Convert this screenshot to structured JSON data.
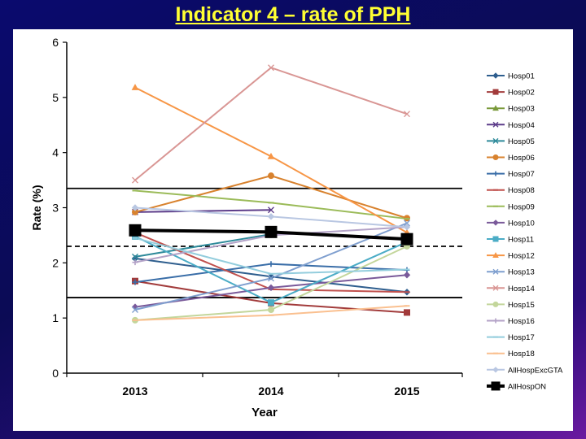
{
  "slide": {
    "title": "Indicator 4 – rate of PPH"
  },
  "chart_data": {
    "type": "line",
    "title": "",
    "xlabel": "Year",
    "ylabel": "Rate (%)",
    "categories": [
      "2013",
      "2014",
      "2015"
    ],
    "ylim": [
      0,
      6
    ],
    "yticks": [
      0,
      1,
      2,
      3,
      4,
      5,
      6
    ],
    "grid": false,
    "legend": "right",
    "reference_lines": [
      {
        "value": 3.35,
        "style": "solid"
      },
      {
        "value": 2.3,
        "style": "dashed"
      },
      {
        "value": 1.37,
        "style": "solid"
      }
    ],
    "series": [
      {
        "name": "Hosp01",
        "values": [
          2.08,
          1.75,
          1.47
        ],
        "color": "#2e5e8e",
        "marker": "diamond"
      },
      {
        "name": "Hosp02",
        "values": [
          1.67,
          1.27,
          1.1
        ],
        "color": "#a23b3b",
        "marker": "square"
      },
      {
        "name": "Hosp03",
        "values": [
          null,
          null,
          null
        ],
        "color": "#7a9a3a",
        "marker": "triangle"
      },
      {
        "name": "Hosp04",
        "values": [
          2.92,
          2.96,
          null
        ],
        "color": "#5d3d8a",
        "marker": "x"
      },
      {
        "name": "Hosp05",
        "values": [
          2.11,
          2.52,
          null
        ],
        "color": "#2e8a9a",
        "marker": "x"
      },
      {
        "name": "Hosp06",
        "values": [
          2.92,
          3.58,
          2.81
        ],
        "color": "#d8822e",
        "marker": "circle"
      },
      {
        "name": "Hosp07",
        "values": [
          1.65,
          1.98,
          1.87
        ],
        "color": "#3a6ea8",
        "marker": "plus"
      },
      {
        "name": "Hosp08",
        "values": [
          2.55,
          1.52,
          1.47
        ],
        "color": "#c0504d",
        "marker": "dash"
      },
      {
        "name": "Hosp09",
        "values": [
          3.31,
          3.09,
          2.8
        ],
        "color": "#9bbb59",
        "marker": "dash"
      },
      {
        "name": "Hosp10",
        "values": [
          1.2,
          1.55,
          1.78
        ],
        "color": "#7a5a9a",
        "marker": "diamond"
      },
      {
        "name": "Hosp11",
        "values": [
          2.48,
          1.28,
          2.38
        ],
        "color": "#4bacc6",
        "marker": "square"
      },
      {
        "name": "Hosp12",
        "values": [
          5.18,
          3.93,
          2.55
        ],
        "color": "#f79646",
        "marker": "triangle"
      },
      {
        "name": "Hosp13",
        "values": [
          1.15,
          1.72,
          2.72
        ],
        "color": "#7f9fcf",
        "marker": "x"
      },
      {
        "name": "Hosp14",
        "values": [
          3.5,
          5.54,
          4.7
        ],
        "color": "#d99694",
        "marker": "x"
      },
      {
        "name": "Hosp15",
        "values": [
          0.96,
          1.15,
          2.3
        ],
        "color": "#c3d69b",
        "marker": "circle"
      },
      {
        "name": "Hosp16",
        "values": [
          2.01,
          2.5,
          2.65
        ],
        "color": "#b3a2c7",
        "marker": "plus"
      },
      {
        "name": "Hosp17",
        "values": [
          2.45,
          1.8,
          1.88
        ],
        "color": "#93cddd",
        "marker": "dash"
      },
      {
        "name": "Hosp18",
        "values": [
          0.96,
          1.05,
          1.22
        ],
        "color": "#fac090",
        "marker": "dash"
      },
      {
        "name": "AllHospExcGTA",
        "values": [
          3.0,
          2.84,
          2.65
        ],
        "color": "#b9c7e2",
        "marker": "diamond"
      },
      {
        "name": "AllHospON",
        "values": [
          2.59,
          2.56,
          2.43
        ],
        "color": "#000000",
        "marker": "square",
        "bold": true
      }
    ]
  }
}
